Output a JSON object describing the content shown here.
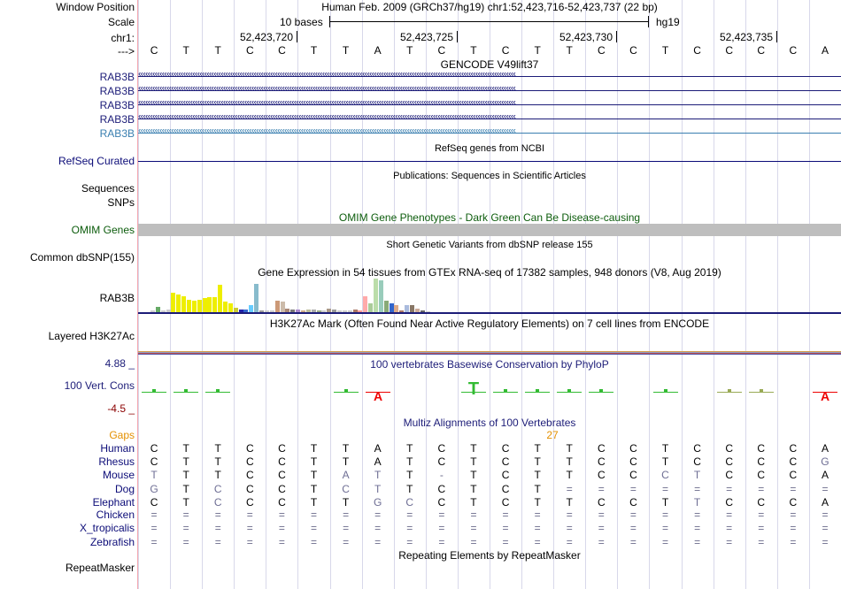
{
  "labels": {
    "window_position": "Window Position",
    "scale": "Scale",
    "chr": "chr1:",
    "arrow": "--->",
    "rab3b_rows": [
      "RAB3B",
      "RAB3B",
      "RAB3B",
      "RAB3B",
      "RAB3B"
    ],
    "refseq": "RefSeq Curated",
    "sequences": "Sequences",
    "snps": "SNPs",
    "omim": "OMIM Genes",
    "common_dbsnp": "Common dbSNP(155)",
    "gtex_gene": "RAB3B",
    "h3k27ac": "Layered H3K27Ac",
    "cons_top": "4.88 _",
    "cons_label": "100 Vert. Cons",
    "cons_bottom": "-4.5 _",
    "gaps": "Gaps",
    "species": [
      "Human",
      "Rhesus",
      "Mouse",
      "Dog",
      "Elephant",
      "Chicken",
      "X_tropicalis",
      "Zebrafish"
    ],
    "repeatmasker": "RepeatMasker"
  },
  "header": {
    "position": "Human Feb. 2009 (GRCh37/hg19)   chr1:52,423,716-52,423,737 (22 bp)",
    "scale_bases": "10 bases",
    "assembly": "hg19",
    "coord_ticks": [
      "52,423,720",
      "52,423,725",
      "52,423,730",
      "52,423,735"
    ]
  },
  "sequence": [
    "C",
    "T",
    "T",
    "C",
    "C",
    "T",
    "T",
    "A",
    "T",
    "C",
    "T",
    "C",
    "T",
    "T",
    "C",
    "C",
    "T",
    "C",
    "C",
    "C",
    "C",
    "A"
  ],
  "tracks": {
    "gencode_title": "GENCODE V49lift37",
    "refseq_title": "RefSeq genes from NCBI",
    "publications_title": "Publications: Sequences in Scientific Articles",
    "omim_title": "OMIM Gene Phenotypes - Dark Green Can Be Disease-causing",
    "dbsnp_title": "Short Genetic Variants from dbSNP release 155",
    "gtex_title": "Gene Expression in 54 tissues from GTEx RNA-seq of 17382 samples, 948 donors (V8, Aug 2019)",
    "h3k27ac_title": "H3K27Ac Mark (Often Found Near Active Regulatory Elements) on 7 cell lines from ENCODE",
    "phylop_title": "100 vertebrates Basewise Conservation by PhyloP",
    "multiz_title": "Multiz Alignments of 100 Vertebrates",
    "gaps_value": "27",
    "repeat_title": "Repeating Elements by RepeatMasker"
  },
  "alignment": {
    "Rhesus": [
      "C",
      "T",
      "T",
      "C",
      "C",
      "T",
      "T",
      "A",
      "T",
      "C",
      "T",
      "C",
      "T",
      "T",
      "C",
      "C",
      "T",
      "C",
      "C",
      "C",
      "C",
      "G"
    ],
    "Mouse": [
      "T",
      "T",
      "T",
      "C",
      "C",
      "T",
      "A",
      "T",
      "T",
      "-",
      "T",
      "C",
      "T",
      "T",
      "C",
      "C",
      "C",
      "T",
      "C",
      "C",
      "C",
      "A"
    ],
    "Dog": [
      "G",
      "T",
      "C",
      "C",
      "C",
      "T",
      "C",
      "T",
      "T",
      "C",
      "T",
      "C",
      "T",
      "=",
      "=",
      "=",
      "=",
      "=",
      "=",
      "=",
      "=",
      "="
    ],
    "Elephant": [
      "C",
      "T",
      "C",
      "C",
      "C",
      "T",
      "T",
      "G",
      "C",
      "C",
      "T",
      "C",
      "T",
      "T",
      "C",
      "C",
      "T",
      "T",
      "C",
      "C",
      "C",
      "A"
    ],
    "Chicken": [
      "=",
      "=",
      "=",
      "=",
      "=",
      "=",
      "=",
      "=",
      "=",
      "=",
      "=",
      "=",
      "=",
      "=",
      "=",
      "=",
      "=",
      "=",
      "=",
      "=",
      "=",
      "="
    ],
    "X_tropicalis": [
      "=",
      "=",
      "=",
      "=",
      "=",
      "=",
      "=",
      "=",
      "=",
      "=",
      "=",
      "=",
      "=",
      "=",
      "=",
      "=",
      "=",
      "=",
      "=",
      "=",
      "=",
      "="
    ],
    "Zebrafish": [
      "=",
      "=",
      "=",
      "=",
      "=",
      "=",
      "=",
      "=",
      "=",
      "=",
      "=",
      "=",
      "=",
      "=",
      "=",
      "=",
      "=",
      "=",
      "=",
      "=",
      "=",
      "="
    ]
  },
  "gtex_expression": [
    0.05,
    0.18,
    0.05,
    0.08,
    0.68,
    0.62,
    0.55,
    0.43,
    0.42,
    0.45,
    0.5,
    0.52,
    0.52,
    0.98,
    0.38,
    0.3,
    0.15,
    0.1,
    0.1,
    0.25,
    1.0,
    0.05,
    0.05,
    0.05,
    0.4,
    0.37,
    0.12,
    0.1,
    0.1,
    0.05,
    0.1,
    0.08,
    0.05,
    0.05,
    0.12,
    0.1,
    0.05,
    0.05,
    0.05,
    0.1,
    0.05,
    0.55,
    0.32,
    1.2,
    1.13,
    0.4,
    0.3,
    0.25,
    0.05,
    0.25,
    0.25,
    0.12,
    0.05,
    0.03
  ],
  "gtex_colors": [
    "#CCCCCC",
    "#66AA66",
    "#CCCCCC",
    "#CCCCCC",
    "#EEEE00",
    "#EEEE00",
    "#EEEE00",
    "#EEEE00",
    "#EEEE00",
    "#EEEE00",
    "#EEEE00",
    "#EEEE00",
    "#EEEE00",
    "#EEEE00",
    "#EEEE00",
    "#EEEE00",
    "#CCCC33",
    "#2222AA",
    "#3366CC",
    "#66CCFF",
    "#88BBCC",
    "#999999",
    "#CCCCCC",
    "#CCCCCC",
    "#CC9977",
    "#CCBBAA",
    "#AA8877",
    "#777777",
    "#AA88CC",
    "#CCAA88",
    "#BBBB99",
    "#AAAAAA",
    "#99AA88",
    "#CCCCCC",
    "#AA9988",
    "#999999",
    "#CCCCCC",
    "#CCCCCC",
    "#CCCCCC",
    "#AA7766",
    "#FF9999",
    "#FFAAAA",
    "#AACC99",
    "#BBDDAA",
    "#99CCBB",
    "#88AA77",
    "#3366CC",
    "#DDAA88",
    "#AA7766",
    "#AABBDD",
    "#887766",
    "#CCAA99",
    "#666666",
    "#CCCCCC"
  ]
}
